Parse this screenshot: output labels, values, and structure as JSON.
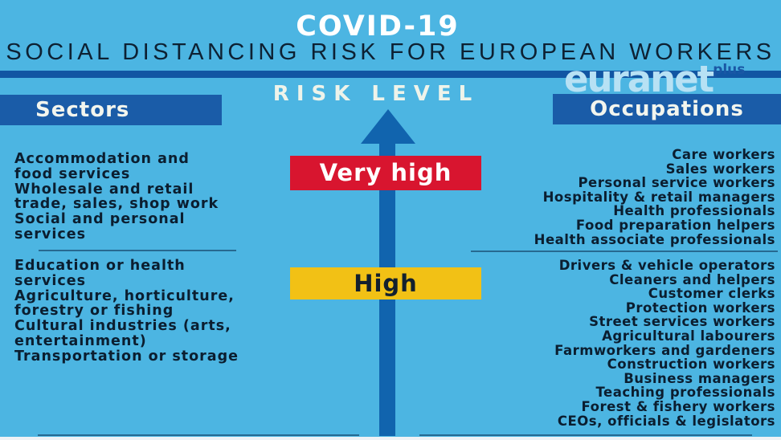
{
  "page": {
    "title": "COVID-19",
    "subtitle": "SOCIAL DISTANCING RISK FOR EUROPEAN WORKERS"
  },
  "logo": {
    "text": "euranet",
    "superscript": "plus"
  },
  "column_headers": {
    "sectors": "Sectors",
    "occupations": "Occupations"
  },
  "risk_axis": {
    "label": "RISK LEVEL",
    "levels": [
      {
        "id": "very-high",
        "label": "Very high",
        "color": "#d8152f",
        "text_color": "#ffffff"
      },
      {
        "id": "high",
        "label": "High",
        "color": "#f2c115",
        "text_color": "#13202e"
      }
    ]
  },
  "sectors": {
    "very_high": [
      "Accommodation and\nfood services",
      "Wholesale and retail\ntrade, sales, shop work",
      "Social and personal\nservices"
    ],
    "high": [
      "Education or health\nservices",
      "Agriculture, horticulture,\nforestry or fishing",
      "Cultural industries (arts,\nentertainment)",
      "Transportation or storage"
    ]
  },
  "occupations": {
    "very_high": [
      "Care workers",
      "Sales workers",
      "Personal service workers",
      "Hospitality & retail managers",
      "Health professionals",
      "Food preparation helpers",
      "Health associate professionals"
    ],
    "high": [
      "Drivers & vehicle operators",
      "Cleaners and helpers",
      "Customer clerks",
      "Protection workers",
      "Street services workers",
      "Agricultural labourers",
      "Farmworkers and gardeners",
      "Construction workers",
      "Business managers",
      "Teaching professionals",
      "Forest & fishery workers",
      "CEOs, officials & legislators"
    ]
  },
  "colors": {
    "background": "#4cb5e2",
    "header_rule_blue": "#1156a3",
    "panel_blue": "#1a5ca8",
    "arrow_blue": "#1164ae",
    "risk_red": "#d8152f",
    "risk_yellow": "#f2c115",
    "text_dark": "#0b1e30",
    "text_light": "#eef3ea",
    "logo_light_blue": "#b7e1f4"
  }
}
